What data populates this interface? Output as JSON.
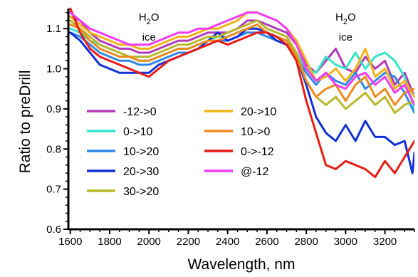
{
  "chart_data": {
    "type": "line",
    "xlabel": "Wavelength, nm",
    "ylabel": "Ratio to preDrill",
    "xlim": [
      1590,
      3350
    ],
    "ylim": [
      0.6,
      1.15
    ],
    "x_ticks": [
      "1600",
      "1800",
      "2000",
      "2200",
      "2400",
      "2600",
      "2800",
      "3000",
      "3200"
    ],
    "x_tick_values": [
      1600,
      1800,
      2000,
      2200,
      2400,
      2600,
      2800,
      3000,
      3200
    ],
    "y_ticks": [
      "0.6",
      "0.7",
      "0.8",
      "0.9",
      "1.0",
      "1.1"
    ],
    "y_tick_values": [
      0.6,
      0.7,
      0.8,
      0.9,
      1.0,
      1.1
    ],
    "grid": false,
    "legend_position": "lower-left inside",
    "annotations": [
      {
        "line1": "H",
        "sub": "2",
        "line1b": "O",
        "line2": "ice",
        "x": 2000
      },
      {
        "line1": "H",
        "sub": "2",
        "line1b": "O",
        "line2": "ice",
        "x": 3000
      }
    ],
    "series": [
      {
        "name": "-12->0",
        "color": "#b03ab8",
        "x": [
          1600,
          1650,
          1700,
          1750,
          1800,
          1850,
          1900,
          1950,
          2000,
          2050,
          2100,
          2150,
          2200,
          2250,
          2300,
          2350,
          2400,
          2450,
          2500,
          2550,
          2600,
          2650,
          2700,
          2750,
          2800,
          2850,
          2900,
          2950,
          3000,
          3050,
          3100,
          3150,
          3200,
          3250,
          3300,
          3350
        ],
        "y": [
          1.13,
          1.12,
          1.09,
          1.07,
          1.06,
          1.05,
          1.05,
          1.04,
          1.04,
          1.05,
          1.06,
          1.07,
          1.07,
          1.08,
          1.09,
          1.09,
          1.09,
          1.1,
          1.12,
          1.12,
          1.11,
          1.1,
          1.09,
          1.06,
          1.01,
          0.99,
          1.02,
          1.05,
          1.0,
          0.99,
          1.03,
          1.0,
          1.02,
          0.96,
          0.99,
          0.93
        ]
      },
      {
        "name": "0->10",
        "color": "#33e6c8",
        "x": [
          1600,
          1650,
          1700,
          1750,
          1800,
          1850,
          1900,
          1950,
          2000,
          2050,
          2100,
          2150,
          2200,
          2250,
          2300,
          2350,
          2400,
          2450,
          2500,
          2550,
          2600,
          2650,
          2700,
          2750,
          2800,
          2850,
          2900,
          2950,
          3000,
          3050,
          3100,
          3150,
          3200,
          3250,
          3300,
          3350
        ],
        "y": [
          1.1,
          1.09,
          1.07,
          1.06,
          1.05,
          1.04,
          1.03,
          1.02,
          1.02,
          1.03,
          1.04,
          1.05,
          1.05,
          1.06,
          1.07,
          1.08,
          1.08,
          1.09,
          1.1,
          1.1,
          1.09,
          1.08,
          1.07,
          1.04,
          1.0,
          0.99,
          1.03,
          1.01,
          1.0,
          1.04,
          1.0,
          1.03,
          1.04,
          1.02,
          0.98,
          0.9
        ]
      },
      {
        "name": "10->20",
        "color": "#2f88e8",
        "x": [
          1600,
          1650,
          1700,
          1750,
          1800,
          1850,
          1900,
          1950,
          2000,
          2050,
          2100,
          2150,
          2200,
          2250,
          2300,
          2350,
          2400,
          2450,
          2500,
          2550,
          2600,
          2650,
          2700,
          2750,
          2800,
          2850,
          2900,
          2950,
          3000,
          3050,
          3100,
          3150,
          3200,
          3250,
          3300,
          3350
        ],
        "y": [
          1.09,
          1.08,
          1.06,
          1.04,
          1.03,
          1.02,
          1.02,
          1.01,
          1.01,
          1.02,
          1.03,
          1.04,
          1.04,
          1.05,
          1.06,
          1.07,
          1.07,
          1.08,
          1.09,
          1.09,
          1.08,
          1.07,
          1.06,
          1.03,
          0.99,
          0.96,
          0.99,
          0.97,
          0.96,
          0.99,
          0.95,
          0.97,
          0.99,
          0.98,
          0.94,
          0.89
        ]
      },
      {
        "name": "20->30",
        "color": "#1230d8",
        "x": [
          1600,
          1650,
          1700,
          1750,
          1800,
          1850,
          1900,
          1950,
          2000,
          2050,
          2100,
          2150,
          2200,
          2250,
          2300,
          2350,
          2400,
          2450,
          2500,
          2550,
          2600,
          2650,
          2700,
          2750,
          2800,
          2850,
          2900,
          2950,
          3000,
          3050,
          3100,
          3150,
          3200,
          3250,
          3300,
          3340,
          3350
        ],
        "y": [
          1.09,
          1.07,
          1.04,
          1.01,
          1.0,
          0.99,
          0.99,
          0.99,
          0.99,
          1.01,
          1.02,
          1.03,
          1.04,
          1.05,
          1.07,
          1.09,
          1.07,
          1.08,
          1.1,
          1.1,
          1.09,
          1.07,
          1.06,
          1.03,
          0.96,
          0.88,
          0.84,
          0.82,
          0.86,
          0.82,
          0.87,
          0.83,
          0.83,
          0.81,
          0.82,
          0.74,
          0.79
        ]
      },
      {
        "name": "30->20",
        "color": "#b8b82a",
        "x": [
          1600,
          1650,
          1700,
          1750,
          1800,
          1850,
          1900,
          1950,
          2000,
          2050,
          2100,
          2150,
          2200,
          2250,
          2300,
          2350,
          2400,
          2450,
          2500,
          2550,
          2600,
          2650,
          2700,
          2750,
          2800,
          2850,
          2900,
          2950,
          3000,
          3050,
          3100,
          3150,
          3200,
          3250,
          3300,
          3350
        ],
        "y": [
          1.12,
          1.1,
          1.08,
          1.06,
          1.05,
          1.04,
          1.03,
          1.03,
          1.03,
          1.04,
          1.05,
          1.06,
          1.06,
          1.07,
          1.08,
          1.08,
          1.09,
          1.1,
          1.11,
          1.12,
          1.1,
          1.09,
          1.08,
          1.04,
          0.97,
          0.93,
          0.91,
          0.93,
          0.9,
          0.92,
          0.94,
          0.91,
          0.93,
          0.89,
          0.91,
          0.92
        ]
      },
      {
        "name": "20->10",
        "color": "#f3b317",
        "x": [
          1600,
          1650,
          1700,
          1750,
          1800,
          1850,
          1900,
          1950,
          2000,
          2050,
          2100,
          2150,
          2200,
          2250,
          2300,
          2350,
          2400,
          2450,
          2500,
          2550,
          2600,
          2650,
          2700,
          2750,
          2800,
          2850,
          2900,
          2950,
          3000,
          3050,
          3100,
          3150,
          3200,
          3250,
          3300,
          3350
        ],
        "y": [
          1.13,
          1.11,
          1.09,
          1.08,
          1.07,
          1.06,
          1.06,
          1.05,
          1.05,
          1.06,
          1.07,
          1.08,
          1.08,
          1.09,
          1.1,
          1.1,
          1.11,
          1.12,
          1.14,
          1.14,
          1.13,
          1.12,
          1.1,
          1.07,
          1.02,
          0.97,
          0.98,
          1.0,
          0.97,
          1.0,
          1.05,
          0.98,
          1.0,
          0.95,
          0.97,
          0.93
        ]
      },
      {
        "name": "10->0",
        "color": "#ee8a1e",
        "x": [
          1600,
          1650,
          1700,
          1750,
          1800,
          1850,
          1900,
          1950,
          2000,
          2050,
          2100,
          2150,
          2200,
          2250,
          2300,
          2350,
          2400,
          2450,
          2500,
          2550,
          2600,
          2650,
          2700,
          2750,
          2800,
          2850,
          2900,
          2950,
          3000,
          3050,
          3100,
          3150,
          3200,
          3250,
          3300,
          3350
        ],
        "y": [
          1.11,
          1.1,
          1.07,
          1.05,
          1.04,
          1.03,
          1.03,
          1.02,
          1.02,
          1.03,
          1.04,
          1.05,
          1.05,
          1.06,
          1.07,
          1.07,
          1.08,
          1.09,
          1.1,
          1.11,
          1.09,
          1.08,
          1.07,
          1.03,
          0.97,
          0.93,
          0.95,
          0.96,
          0.92,
          0.96,
          0.98,
          0.93,
          0.95,
          0.91,
          0.94,
          0.95
        ]
      },
      {
        "name": "0->-12",
        "color": "#e81c16",
        "x": [
          1600,
          1650,
          1700,
          1750,
          1800,
          1850,
          1900,
          1950,
          2000,
          2050,
          2100,
          2150,
          2200,
          2250,
          2300,
          2350,
          2400,
          2450,
          2500,
          2550,
          2600,
          2650,
          2700,
          2750,
          2800,
          2850,
          2900,
          2950,
          3000,
          3050,
          3100,
          3150,
          3200,
          3250,
          3300,
          3350
        ],
        "y": [
          1.15,
          1.09,
          1.05,
          1.03,
          1.02,
          1.01,
          1.0,
          0.99,
          0.98,
          1.0,
          1.02,
          1.03,
          1.04,
          1.05,
          1.06,
          1.07,
          1.06,
          1.07,
          1.08,
          1.09,
          1.09,
          1.08,
          1.06,
          1.02,
          0.92,
          0.84,
          0.76,
          0.75,
          0.77,
          0.76,
          0.75,
          0.73,
          0.77,
          0.74,
          0.78,
          0.82
        ]
      },
      {
        "name": "@-12",
        "color": "#f23cf2",
        "x": [
          1600,
          1650,
          1700,
          1750,
          1800,
          1850,
          1900,
          1950,
          2000,
          2050,
          2100,
          2150,
          2200,
          2250,
          2300,
          2350,
          2400,
          2450,
          2500,
          2550,
          2600,
          2650,
          2700,
          2750,
          2800,
          2850,
          2900,
          2950,
          3000,
          3050,
          3100,
          3150,
          3200,
          3250,
          3300,
          3350
        ],
        "y": [
          1.14,
          1.12,
          1.1,
          1.09,
          1.08,
          1.07,
          1.06,
          1.06,
          1.06,
          1.07,
          1.08,
          1.09,
          1.09,
          1.1,
          1.1,
          1.11,
          1.12,
          1.13,
          1.14,
          1.14,
          1.13,
          1.12,
          1.1,
          1.06,
          1.0,
          0.97,
          0.99,
          0.96,
          0.95,
          0.98,
          0.99,
          0.96,
          0.98,
          0.94,
          0.96,
          0.91
        ]
      }
    ]
  }
}
